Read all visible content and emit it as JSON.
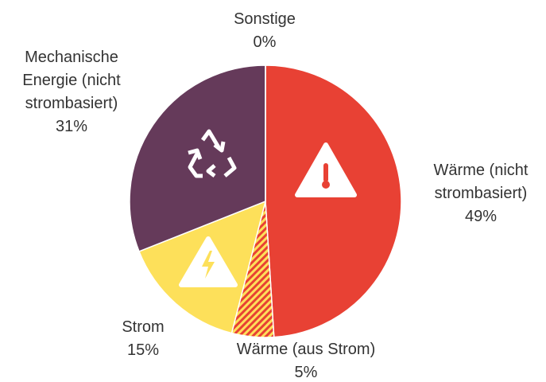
{
  "chart_data": {
    "type": "pie",
    "categories": [
      "Wärme (nicht strombasiert)",
      "Wärme (aus Strom)",
      "Strom",
      "Mechanische Energie (nicht strombasiert)",
      "Sonstige"
    ],
    "values": [
      49,
      5,
      15,
      31,
      0
    ],
    "value_labels": [
      "49%",
      "5%",
      "15%",
      "31%",
      "0%"
    ],
    "colors": [
      "#e84134",
      "#e84134",
      "#fde05a",
      "#653a5a",
      "#b0b0b0"
    ],
    "hatch": [
      false,
      true,
      false,
      false,
      false
    ]
  }
}
